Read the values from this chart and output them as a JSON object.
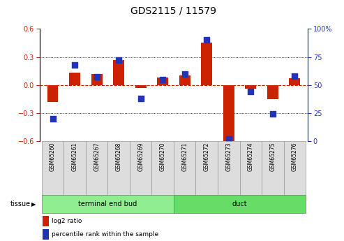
{
  "title": "GDS2115 / 11579",
  "samples": [
    "GSM65260",
    "GSM65261",
    "GSM65267",
    "GSM65268",
    "GSM65269",
    "GSM65270",
    "GSM65271",
    "GSM65272",
    "GSM65273",
    "GSM65274",
    "GSM65275",
    "GSM65276"
  ],
  "log2_ratio": [
    -0.18,
    0.13,
    0.12,
    0.27,
    -0.03,
    0.08,
    0.1,
    0.45,
    -0.62,
    -0.04,
    -0.15,
    0.07
  ],
  "percentile_rank": [
    20,
    68,
    57,
    72,
    38,
    55,
    60,
    90,
    2,
    44,
    24,
    58
  ],
  "tissue_groups": [
    {
      "label": "terminal end bud",
      "start": 0,
      "end": 6,
      "color": "#90EE90"
    },
    {
      "label": "duct",
      "start": 6,
      "end": 12,
      "color": "#66DD66"
    }
  ],
  "ylim_left": [
    -0.6,
    0.6
  ],
  "ylim_right": [
    0,
    100
  ],
  "yticks_left": [
    -0.6,
    -0.3,
    0.0,
    0.3,
    0.6
  ],
  "yticks_right": [
    0,
    25,
    50,
    75,
    100
  ],
  "bar_color": "#CC2200",
  "dot_color": "#2233BB",
  "zero_line_color": "#CC2200",
  "grid_color": "#000000",
  "left_axis_color": "#CC2200",
  "right_axis_color": "#2233BB",
  "legend_red_label": "log2 ratio",
  "legend_blue_label": "percentile rank within the sample",
  "tissue_label": "tissue",
  "bar_width": 0.5,
  "dot_size": 28,
  "sample_box_color": "#DDDDDD",
  "sample_box_edge": "#999999",
  "tissue_box_edge": "#777777",
  "bg_color": "#FFFFFF"
}
